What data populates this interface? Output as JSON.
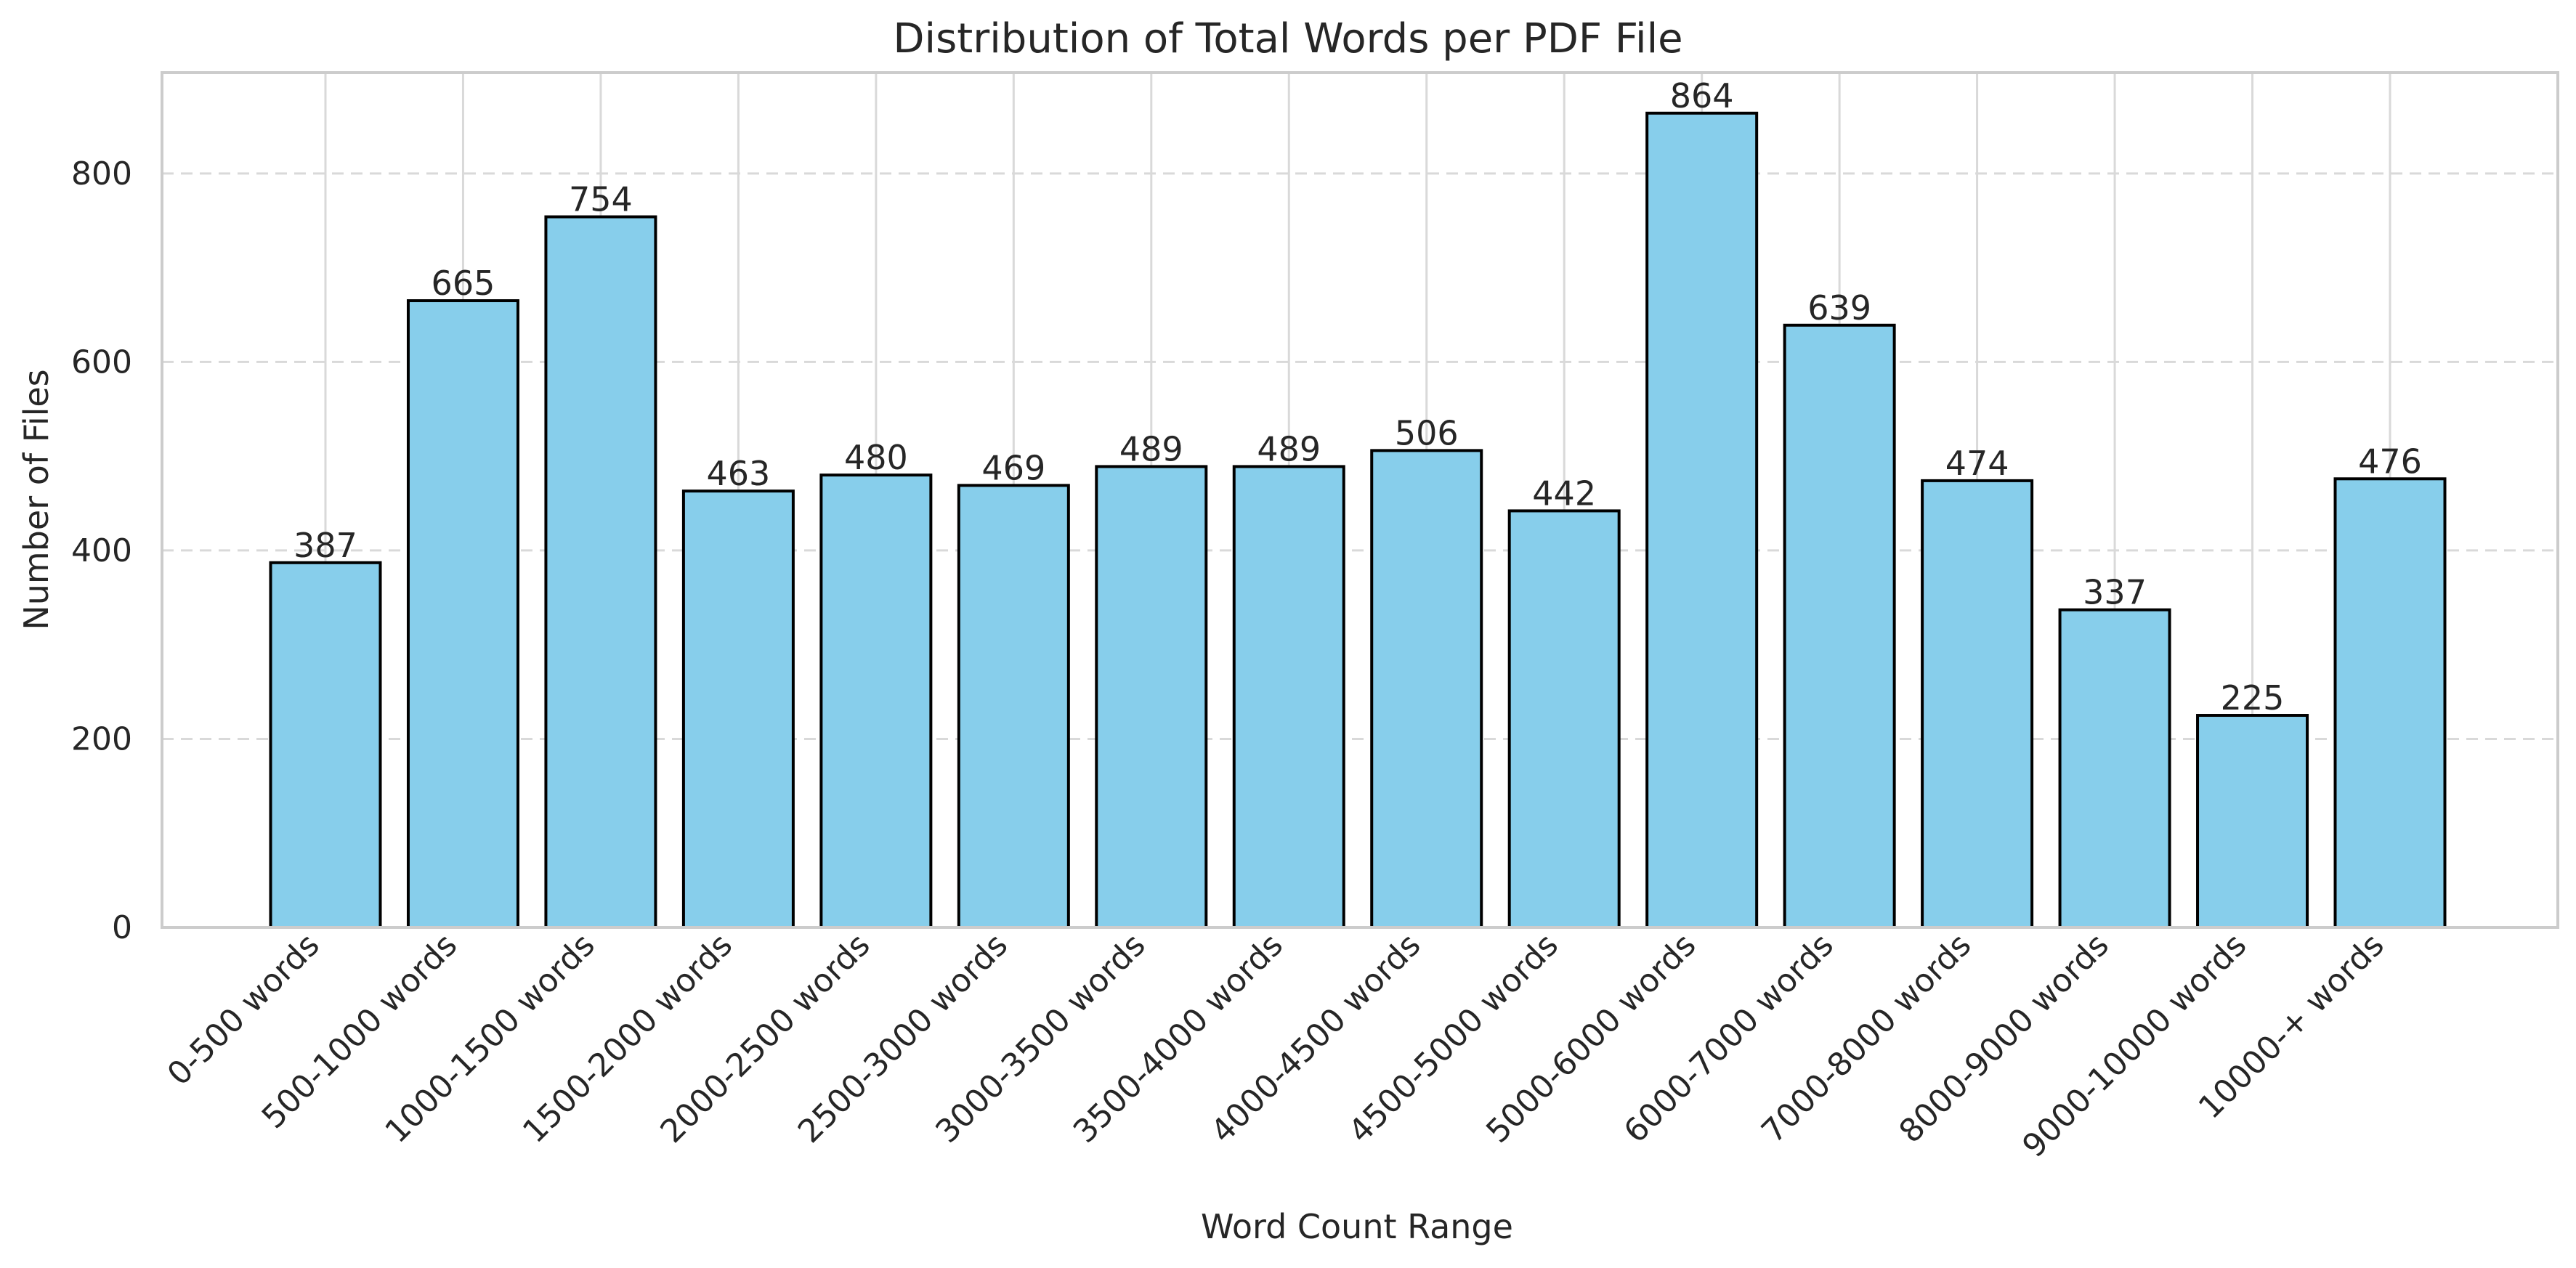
{
  "chart_data": {
    "type": "bar",
    "title": "Distribution of Total Words per PDF File",
    "xlabel": "Word Count Range",
    "ylabel": "Number of Files",
    "categories": [
      "0-500 words",
      "500-1000 words",
      "1000-1500 words",
      "1500-2000 words",
      "2000-2500 words",
      "2500-3000 words",
      "3000-3500 words",
      "3500-4000 words",
      "4000-4500 words",
      "4500-5000 words",
      "5000-6000 words",
      "6000-7000 words",
      "7000-8000 words",
      "8000-9000 words",
      "9000-10000 words",
      "10000-+ words"
    ],
    "values": [
      387,
      665,
      754,
      463,
      480,
      469,
      489,
      489,
      506,
      442,
      864,
      639,
      474,
      337,
      225,
      476
    ],
    "ylim": [
      0,
      907
    ],
    "yticks": [
      0,
      200,
      400,
      600,
      800
    ],
    "grid": {
      "x": "solid",
      "y": "dashed"
    },
    "colors": {
      "bar_fill": "#87CEEB",
      "bar_edge": "#000000",
      "grid": "#D9D9D9",
      "axis": "#CCCCCC",
      "text": "#262626"
    }
  }
}
